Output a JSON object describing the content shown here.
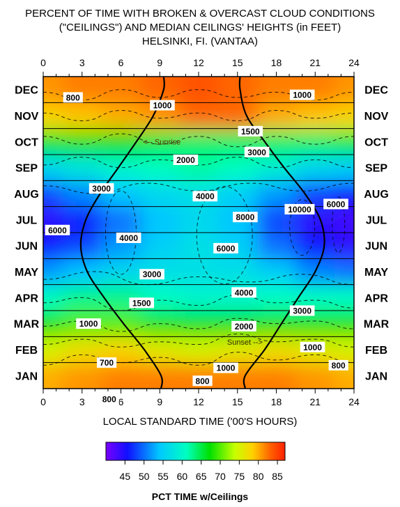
{
  "chart_data": {
    "type": "heatmap",
    "title": [
      "PERCENT OF TIME WITH BROKEN & OVERCAST CLOUD CONDITIONS",
      "(\"CEILINGS\") AND MEDIAN CEILINGS' HEIGHTS (in FEET)",
      "HELSINKI, FI.  (VANTAA)"
    ],
    "xlabel": "LOCAL STANDARD TIME ('00'S HOURS)",
    "colorbar_label": "PCT TIME w/Ceilings",
    "x_ticks": [
      "0",
      "3",
      "6",
      "9",
      "12",
      "15",
      "18",
      "21",
      "24"
    ],
    "xlim": [
      0,
      24
    ],
    "months": [
      "JAN",
      "FEB",
      "MAR",
      "APR",
      "MAY",
      "JUN",
      "JUL",
      "AUG",
      "SEP",
      "OCT",
      "NOV",
      "DEC"
    ],
    "colorbar_ticks": [
      "45",
      "50",
      "55",
      "60",
      "65",
      "70",
      "75",
      "80",
      "85"
    ],
    "colorbar_range": [
      40,
      87
    ],
    "hours": [
      0,
      3,
      6,
      9,
      12,
      15,
      18,
      21,
      24
    ],
    "pct_time": [
      [
        80,
        81,
        82,
        82,
        82,
        82,
        82,
        81,
        80
      ],
      [
        75,
        77,
        78,
        76,
        75,
        76,
        77,
        76,
        75
      ],
      [
        68,
        70,
        70,
        68,
        67,
        67,
        68,
        68,
        68
      ],
      [
        61,
        63,
        63,
        61,
        60,
        60,
        61,
        61,
        61
      ],
      [
        52,
        54,
        56,
        57,
        57,
        57,
        55,
        51,
        50
      ],
      [
        46,
        48,
        52,
        55,
        57,
        55,
        50,
        46,
        44
      ],
      [
        44,
        46,
        50,
        54,
        56,
        54,
        48,
        44,
        43
      ],
      [
        48,
        51,
        54,
        56,
        57,
        55,
        52,
        48,
        46
      ],
      [
        56,
        58,
        60,
        61,
        62,
        61,
        59,
        56,
        55
      ],
      [
        66,
        68,
        67,
        65,
        64,
        64,
        64,
        64,
        65
      ],
      [
        78,
        79,
        80,
        81,
        83,
        83,
        80,
        79,
        78
      ],
      [
        81,
        82,
        82,
        83,
        84,
        83,
        82,
        82,
        81
      ]
    ],
    "sunrise_hour": [
      9.1,
      7.8,
      6.2,
      4.7,
      3.4,
      2.9,
      3.3,
      4.4,
      5.8,
      7.2,
      8.5,
      9.3
    ],
    "sunset_hour": [
      15.6,
      17.1,
      18.4,
      19.7,
      21.0,
      21.7,
      21.4,
      20.2,
      18.6,
      17.1,
      15.7,
      15.2
    ],
    "annotations": {
      "sunrise": "<-- Sunrise",
      "sunset": "Sunset -->"
    },
    "ceiling_labels": [
      {
        "text": "800",
        "hour": 2.3,
        "month": 0.8
      },
      {
        "text": "1000",
        "hour": 9.2,
        "month": 1.1
      },
      {
        "text": "1000",
        "hour": 20.0,
        "month": 0.7
      },
      {
        "text": "1500",
        "hour": 16.0,
        "month": 2.1
      },
      {
        "text": "2000",
        "hour": 11.0,
        "month": 3.2
      },
      {
        "text": "3000",
        "hour": 16.5,
        "month": 2.9
      },
      {
        "text": "3000",
        "hour": 4.5,
        "month": 4.3
      },
      {
        "text": "4000",
        "hour": 12.5,
        "month": 4.6
      },
      {
        "text": "8000",
        "hour": 15.6,
        "month": 5.4
      },
      {
        "text": "10000",
        "hour": 19.8,
        "month": 5.1
      },
      {
        "text": "6000",
        "hour": 22.6,
        "month": 4.9
      },
      {
        "text": "6000",
        "hour": 1.1,
        "month": 5.9
      },
      {
        "text": "4000",
        "hour": 6.6,
        "month": 6.2
      },
      {
        "text": "6000",
        "hour": 14.1,
        "month": 6.6
      },
      {
        "text": "3000",
        "hour": 8.4,
        "month": 7.6
      },
      {
        "text": "4000",
        "hour": 15.5,
        "month": 8.3
      },
      {
        "text": "1500",
        "hour": 7.6,
        "month": 8.7
      },
      {
        "text": "3000",
        "hour": 20.0,
        "month": 9.0
      },
      {
        "text": "1000",
        "hour": 3.5,
        "month": 9.5
      },
      {
        "text": "2000",
        "hour": 15.5,
        "month": 9.6
      },
      {
        "text": "1000",
        "hour": 20.8,
        "month": 10.4
      },
      {
        "text": "700",
        "hour": 4.9,
        "month": 11.0
      },
      {
        "text": "1000",
        "hour": 14.1,
        "month": 11.2
      },
      {
        "text": "800",
        "hour": 22.8,
        "month": 11.1
      },
      {
        "text": "800",
        "hour": 12.3,
        "month": 11.7
      },
      {
        "text": "800",
        "hour": 5.1,
        "month": 12.4
      }
    ]
  }
}
